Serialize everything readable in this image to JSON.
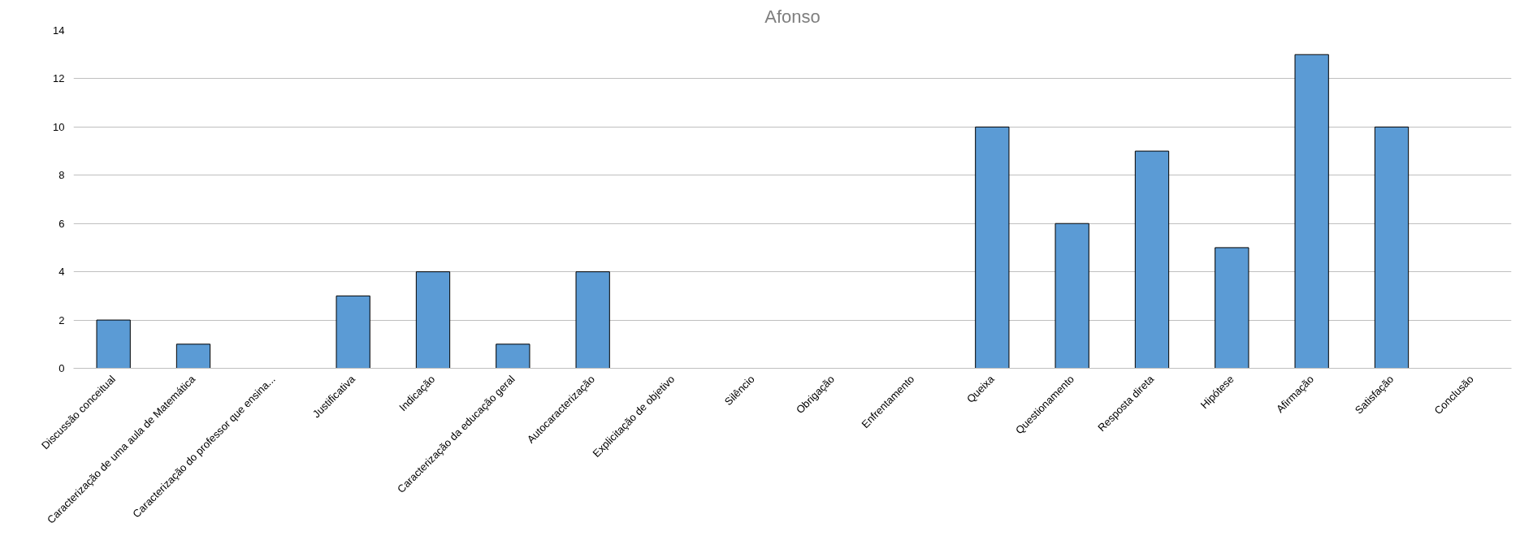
{
  "chart_data": {
    "type": "bar",
    "title": "Afonso",
    "categories": [
      "Discussão conceitual",
      "Caracterização de uma aula de Matemática",
      "Caracterização do professor que ensina...",
      "Justificativa",
      "Indicação",
      "Caracterização da educação geral",
      "Autocaracterização",
      "Explicitação de objetivo",
      "Silêncio",
      "Obrigação",
      "Enfrentamento",
      "Queixa",
      "Questionamento",
      "Resposta direta",
      "Hipótese",
      "Afirmação",
      "Satisfação",
      "Conclusão"
    ],
    "values": [
      2,
      1,
      0,
      3,
      4,
      1,
      4,
      0,
      0,
      0,
      0,
      10,
      6,
      9,
      5,
      13,
      10,
      0
    ],
    "color": "#5b9bd5",
    "ylim": [
      0,
      14
    ],
    "yticks": [
      0,
      2,
      4,
      6,
      8,
      10,
      12,
      14
    ],
    "grid": "y"
  }
}
